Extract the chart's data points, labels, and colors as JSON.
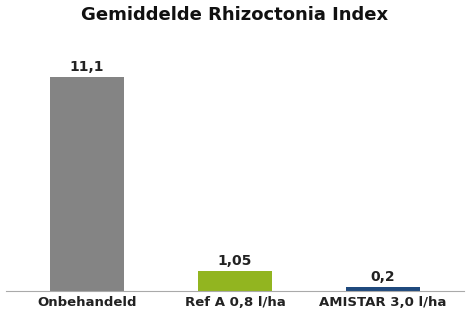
{
  "title": "Gemiddelde Rhizoctonia Index",
  "categories": [
    "Onbehandeld",
    "Ref A 0,8 l/ha",
    "AMISTAR 3,0 l/ha"
  ],
  "values": [
    11.1,
    1.05,
    0.2
  ],
  "labels": [
    "11,1",
    "1,05",
    "0,2"
  ],
  "bar_colors": [
    "#848484",
    "#92b520",
    "#1f497d"
  ],
  "background_color": "#ffffff",
  "title_fontsize": 13,
  "label_fontsize": 10,
  "tick_fontsize": 9.5,
  "ylim": [
    0,
    13.5
  ],
  "bar_width": 0.5,
  "figsize": [
    4.7,
    3.15
  ],
  "dpi": 100
}
